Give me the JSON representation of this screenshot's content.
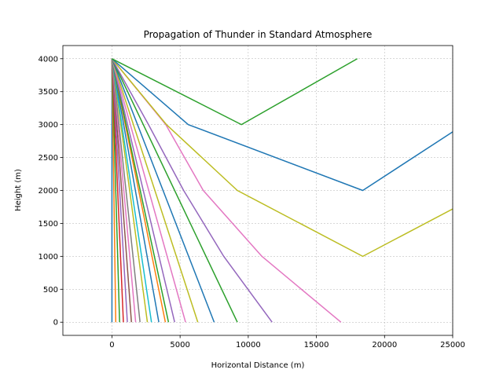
{
  "chart_data": {
    "type": "line",
    "title": "Propagation of Thunder in Standard Atmosphere",
    "xlabel": "Horizontal Distance (m)",
    "ylabel": "Height (m)",
    "xlim": [
      -3600,
      25000
    ],
    "ylim": [
      -200,
      4200
    ],
    "xticks": [
      0,
      5000,
      10000,
      15000,
      20000,
      25000
    ],
    "yticks": [
      0,
      500,
      1000,
      1500,
      2000,
      2500,
      3000,
      3500,
      4000
    ],
    "grid": true,
    "colors": [
      "#1f77b4",
      "#ff7f0e",
      "#2ca02c",
      "#d62728",
      "#9467bd",
      "#8c564b",
      "#e377c2",
      "#7f7f7f",
      "#bcbd22",
      "#17becf"
    ],
    "series": [
      {
        "color": "#1f77b4",
        "x": [
          0,
          0
        ],
        "y": [
          4000,
          0
        ]
      },
      {
        "color": "#ff7f0e",
        "x": [
          0,
          280
        ],
        "y": [
          4000,
          0
        ]
      },
      {
        "color": "#2ca02c",
        "x": [
          0,
          560
        ],
        "y": [
          4000,
          0
        ]
      },
      {
        "color": "#d62728",
        "x": [
          0,
          840
        ],
        "y": [
          4000,
          0
        ]
      },
      {
        "color": "#9467bd",
        "x": [
          0,
          1130
        ],
        "y": [
          4000,
          0
        ]
      },
      {
        "color": "#8c564b",
        "x": [
          0,
          1430
        ],
        "y": [
          4000,
          0
        ]
      },
      {
        "color": "#e377c2",
        "x": [
          0,
          1740
        ],
        "y": [
          4000,
          0
        ]
      },
      {
        "color": "#7f7f7f",
        "x": [
          0,
          2060
        ],
        "y": [
          4000,
          0
        ]
      },
      {
        "color": "#bcbd22",
        "x": [
          0,
          2600
        ],
        "y": [
          4000,
          0
        ]
      },
      {
        "color": "#17becf",
        "x": [
          0,
          2900
        ],
        "y": [
          4000,
          0
        ]
      },
      {
        "color": "#1f77b4",
        "x": [
          0,
          3440
        ],
        "y": [
          4000,
          0
        ]
      },
      {
        "color": "#ff7f0e",
        "x": [
          0,
          3920
        ],
        "y": [
          4000,
          0
        ]
      },
      {
        "color": "#2ca02c",
        "x": [
          0,
          4150
        ],
        "y": [
          4000,
          0
        ]
      },
      {
        "color": "#9467bd",
        "x": [
          0,
          4600
        ],
        "y": [
          4000,
          0
        ]
      },
      {
        "color": "#e377c2",
        "x": [
          0,
          5400
        ],
        "y": [
          4000,
          0
        ]
      },
      {
        "color": "#bcbd22",
        "x": [
          0,
          6300
        ],
        "y": [
          4000,
          0
        ]
      },
      {
        "color": "#1f77b4",
        "x": [
          0,
          7500
        ],
        "y": [
          4000,
          0
        ]
      },
      {
        "color": "#2ca02c",
        "x": [
          0,
          9200
        ],
        "y": [
          4000,
          0
        ]
      },
      {
        "color": "#9467bd",
        "x": [
          0,
          2680,
          5260,
          8200,
          11750
        ],
        "y": [
          4000,
          3000,
          2000,
          1000,
          0
        ]
      },
      {
        "color": "#e377c2",
        "x": [
          0,
          3950,
          6700,
          11000,
          16800
        ],
        "y": [
          4000,
          3000,
          2000,
          1000,
          0
        ]
      },
      {
        "color": "#bcbd22",
        "x": [
          0,
          4000,
          9200,
          18400,
          25000
        ],
        "y": [
          4000,
          3000,
          2000,
          1000,
          1720
        ]
      },
      {
        "color": "#1f77b4",
        "x": [
          0,
          5600,
          18400,
          25000
        ],
        "y": [
          4000,
          3000,
          2000,
          2890
        ]
      },
      {
        "color": "#2ca02c",
        "x": [
          0,
          9500,
          18000
        ],
        "y": [
          4000,
          3000,
          4000
        ]
      }
    ]
  }
}
